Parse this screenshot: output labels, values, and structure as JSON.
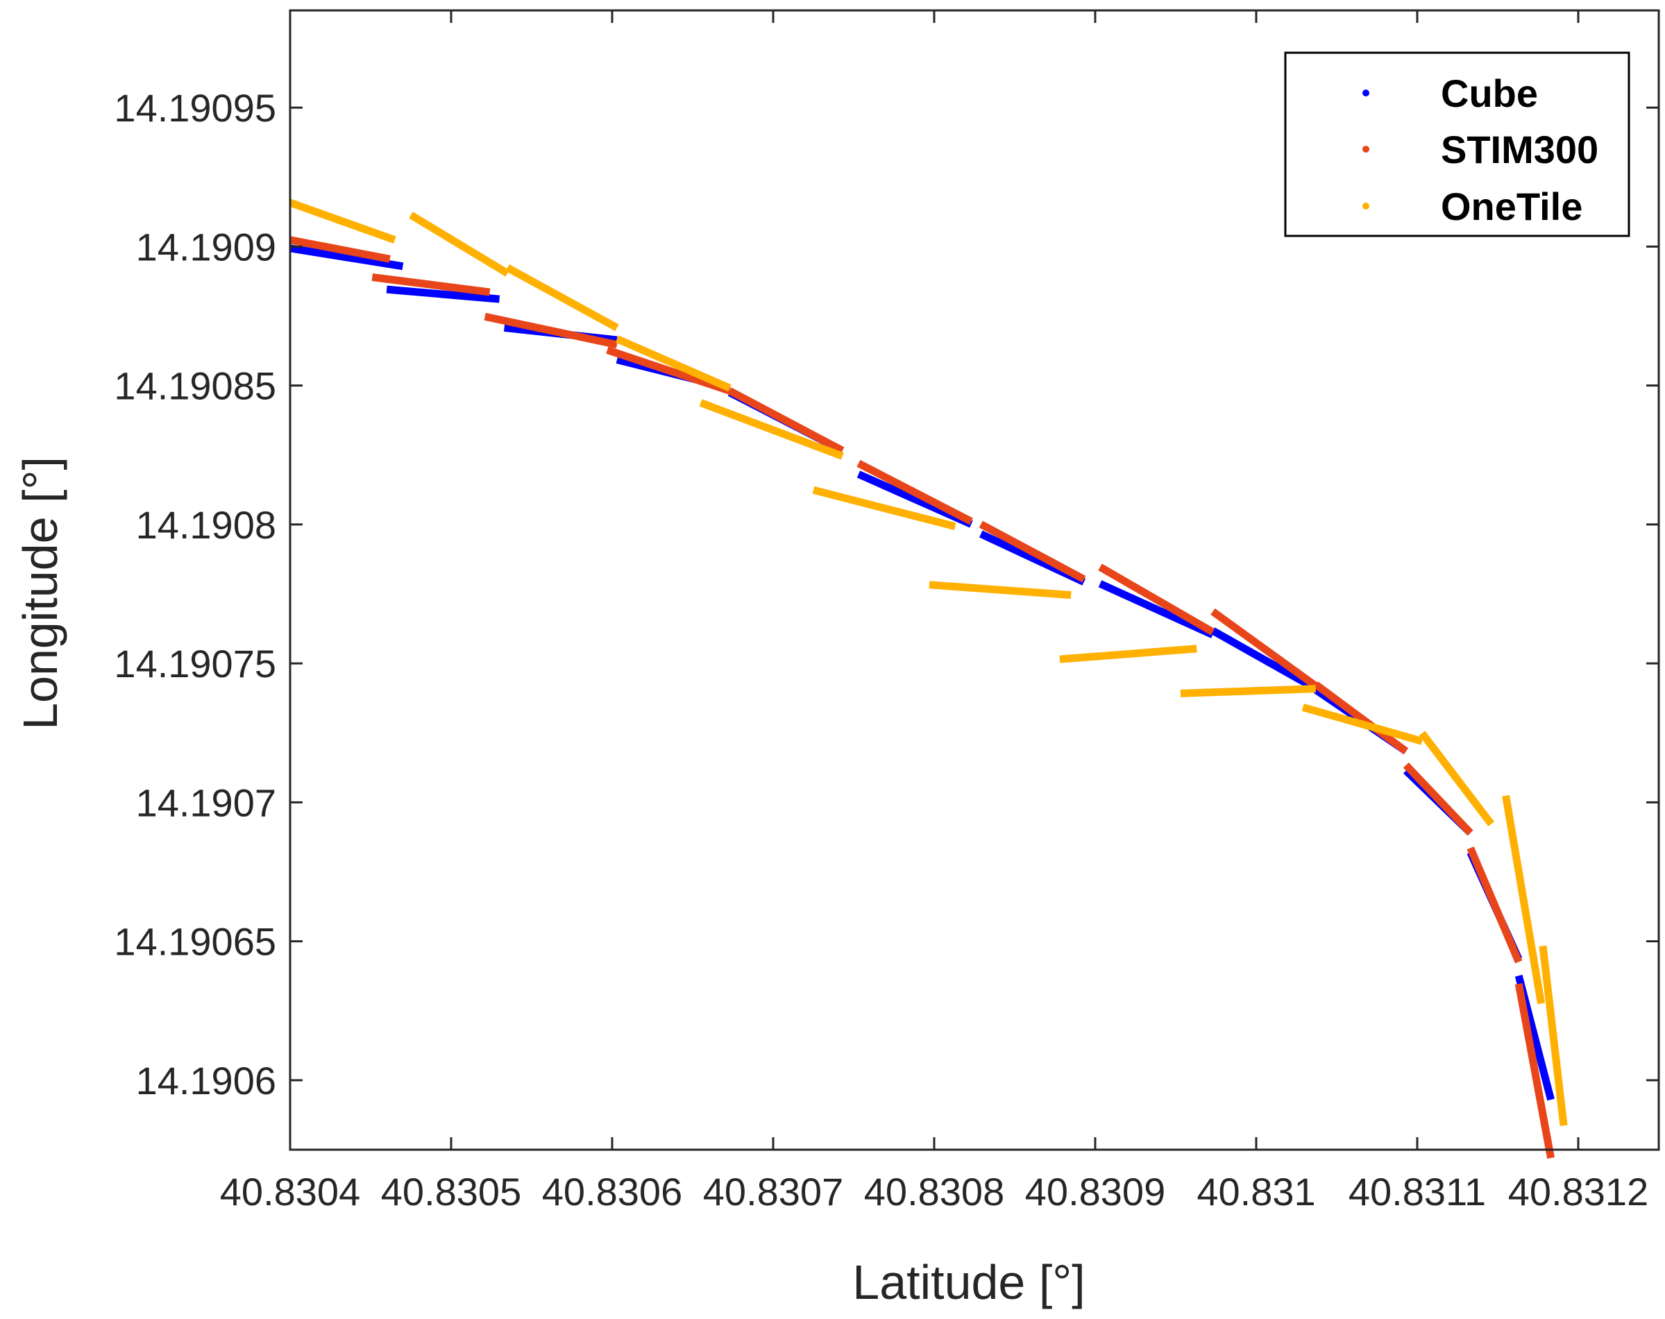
{
  "chart_data": {
    "type": "line",
    "title": "",
    "xlabel": "Latitude [°]",
    "ylabel": "Longitude [°]",
    "xlim": [
      40.8304,
      40.83125
    ],
    "ylim": [
      14.190575,
      14.190985
    ],
    "grid": false,
    "legend_position": "top-right",
    "x_ticks": [
      40.8304,
      40.8305,
      40.8306,
      40.8307,
      40.8308,
      40.8309,
      40.831,
      40.8311,
      40.8312
    ],
    "x_tick_labels": [
      "40.8304",
      "40.8305",
      "40.8306",
      "40.8307",
      "40.8308",
      "40.8309",
      "40.831",
      "40.8311",
      "40.8312"
    ],
    "y_ticks": [
      14.1906,
      14.19065,
      14.1907,
      14.19075,
      14.1908,
      14.19085,
      14.1909,
      14.19095
    ],
    "y_tick_labels": [
      "14.1906",
      "14.19065",
      "14.1907",
      "14.19075",
      "14.1908",
      "14.19085",
      "14.1909",
      "14.19095"
    ],
    "series": [
      {
        "name": "Cube",
        "color": "#0000ff",
        "segments": [
          [
            [
              40.8304,
              14.1908994
            ],
            [
              40.83047,
              14.1908929
            ]
          ],
          [
            [
              40.83046,
              14.1908846
            ],
            [
              40.83053,
              14.1908811
            ]
          ],
          [
            [
              40.830533,
              14.1908708
            ],
            [
              40.830603,
              14.1908664
            ]
          ],
          [
            [
              40.830603,
              14.1908593
            ],
            [
              40.830673,
              14.1908491
            ]
          ],
          [
            [
              40.830673,
              14.1908475
            ],
            [
              40.830743,
              14.1908266
            ]
          ],
          [
            [
              40.830753,
              14.1908181
            ],
            [
              40.830823,
              14.1908001
            ]
          ],
          [
            [
              40.830829,
              14.1907966
            ],
            [
              40.830893,
              14.1907793
            ]
          ],
          [
            [
              40.830903,
              14.1907787
            ],
            [
              40.830973,
              14.1907603
            ]
          ],
          [
            [
              40.830973,
              14.1907618
            ],
            [
              40.831037,
              14.1907409
            ]
          ],
          [
            [
              40.831037,
              14.1907405
            ],
            [
              40.831093,
              14.1907184
            ]
          ],
          [
            [
              40.831093,
              14.1907114
            ],
            [
              40.831133,
              14.190689
            ]
          ],
          [
            [
              40.831133,
              14.190682
            ],
            [
              40.831163,
              14.1906436
            ]
          ],
          [
            [
              40.831163,
              14.1906376
            ],
            [
              40.831183,
              14.190593
            ]
          ]
        ]
      },
      {
        "name": "STIM300",
        "color": "#e8461a",
        "segments": [
          [
            [
              40.8304,
              14.1909024
            ],
            [
              40.830462,
              14.1908955
            ]
          ],
          [
            [
              40.830451,
              14.190889
            ],
            [
              40.830524,
              14.1908836
            ]
          ],
          [
            [
              40.830521,
              14.1908748
            ],
            [
              40.830603,
              14.1908647
            ]
          ],
          [
            [
              40.830597,
              14.1908628
            ],
            [
              40.830673,
              14.1908481
            ]
          ],
          [
            [
              40.830673,
              14.1908481
            ],
            [
              40.830743,
              14.1908266
            ]
          ],
          [
            [
              40.830753,
              14.190822
            ],
            [
              40.830823,
              14.1908011
            ]
          ],
          [
            [
              40.830829,
              14.1908001
            ],
            [
              40.830893,
              14.1907803
            ]
          ],
          [
            [
              40.830903,
              14.1907847
            ],
            [
              40.830973,
              14.1907613
            ]
          ],
          [
            [
              40.830973,
              14.1907687
            ],
            [
              40.831037,
              14.1907419
            ]
          ],
          [
            [
              40.831037,
              14.1907424
            ],
            [
              40.831093,
              14.1907184
            ]
          ],
          [
            [
              40.831093,
              14.1907134
            ],
            [
              40.831133,
              14.190689
            ]
          ],
          [
            [
              40.831133,
              14.1906836
            ],
            [
              40.831163,
              14.1906426
            ]
          ],
          [
            [
              40.831163,
              14.1906347
            ],
            [
              40.831183,
              14.190572
            ]
          ]
        ]
      },
      {
        "name": "OneTile",
        "color": "#ffb000",
        "segments": [
          [
            [
              40.8304,
              14.1909158
            ],
            [
              40.830465,
              14.1909024
            ]
          ],
          [
            [
              40.830475,
              14.1909114
            ],
            [
              40.830535,
              14.1908904
            ]
          ],
          [
            [
              40.830535,
              14.1908924
            ],
            [
              40.830603,
              14.1908708
            ]
          ],
          [
            [
              40.830603,
              14.1908668
            ],
            [
              40.830673,
              14.1908491
            ]
          ],
          [
            [
              40.830655,
              14.1908438
            ],
            [
              40.830743,
              14.1908246
            ]
          ],
          [
            [
              40.830725,
              14.1908124
            ],
            [
              40.830813,
              14.1907993
            ]
          ],
          [
            [
              40.830797,
              14.1907783
            ],
            [
              40.830885,
              14.1907746
            ]
          ],
          [
            [
              40.830878,
              14.1907515
            ],
            [
              40.830963,
              14.1907553
            ]
          ],
          [
            [
              40.830953,
              14.1907392
            ],
            [
              40.831037,
              14.1907409
            ]
          ],
          [
            [
              40.831029,
              14.1907342
            ],
            [
              40.831103,
              14.190722
            ]
          ],
          [
            [
              40.831103,
              14.1907249
            ],
            [
              40.831146,
              14.1906922
            ]
          ],
          [
            [
              40.831155,
              14.1907024
            ],
            [
              40.831177,
              14.1906276
            ]
          ],
          [
            [
              40.831178,
              14.1906483
            ],
            [
              40.831191,
              14.1905837
            ]
          ]
        ]
      }
    ]
  }
}
